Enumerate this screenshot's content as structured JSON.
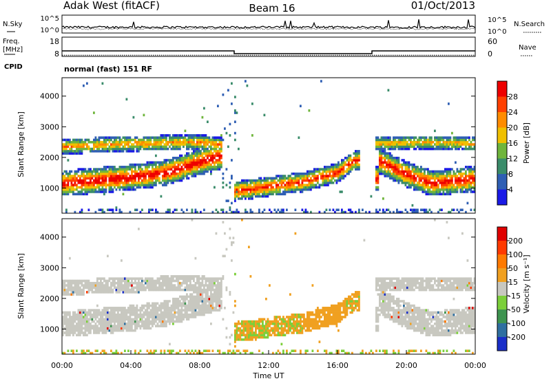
{
  "header": {
    "station": "Adak West (fitACF)",
    "beam": "Beam 16",
    "date": "01/Oct/2013"
  },
  "noise_panel": {
    "left_label": "N.Sky",
    "left_ticks": [
      "10^5",
      "10^0"
    ],
    "right_ticks": [
      "10^5",
      "10^0"
    ],
    "right_label": "N.Search"
  },
  "freq_panel": {
    "left_label_1": "Freq.",
    "left_label_2": "[MHz]",
    "left_ticks": [
      "18",
      "8"
    ],
    "right_ticks": [
      "60",
      "0"
    ],
    "right_label": "Nave",
    "cpid_label": "CPID",
    "cpid_text": "normal (fast) 151 RF"
  },
  "chart_data": [
    {
      "type": "heatmap",
      "quantity": "power",
      "ylabel": "Slant Range [km]",
      "yticks": [
        "4000",
        "3000",
        "2000",
        "1000"
      ],
      "ylim": [
        180,
        4600
      ],
      "xlim": [
        0,
        24
      ],
      "colorbar_label": "Power [dB]",
      "colorbar_ticks": [
        "28",
        "24",
        "20",
        "16",
        "12",
        "8",
        "4"
      ],
      "colorbar_range": [
        0,
        32
      ],
      "colors": [
        "#1a1ae6",
        "#2f5fb4",
        "#3a8c6a",
        "#6fb53c",
        "#f0c000",
        "#ff8c00",
        "#ff4000",
        "#ee0000"
      ]
    },
    {
      "type": "heatmap",
      "quantity": "velocity",
      "ylabel": "Slant Range [km]",
      "yticks": [
        "4000",
        "3000",
        "2000",
        "1000"
      ],
      "ylim": [
        180,
        4600
      ],
      "xlim": [
        0,
        24
      ],
      "xlabel": "Time UT",
      "xticks": [
        "00:00",
        "04:00",
        "08:00",
        "12:00",
        "16:00",
        "20:00",
        "00:00"
      ],
      "colorbar_label": "Velocity [m s⁻¹]",
      "colorbar_ticks": [
        "200",
        "100",
        "50",
        "15",
        "-15",
        "-50",
        "-100",
        "-200"
      ],
      "colors": [
        "#1a2ec8",
        "#2f6fa0",
        "#3e9450",
        "#7ccf3a",
        "#c8c8c0",
        "#f0a020",
        "#ff7a00",
        "#ff3a00",
        "#e00000"
      ]
    }
  ],
  "frequency_series": {
    "step_times": [
      0,
      10,
      18,
      24
    ],
    "freq_mhz": [
      12,
      10,
      12
    ],
    "nave": [
      8,
      8,
      8
    ]
  }
}
